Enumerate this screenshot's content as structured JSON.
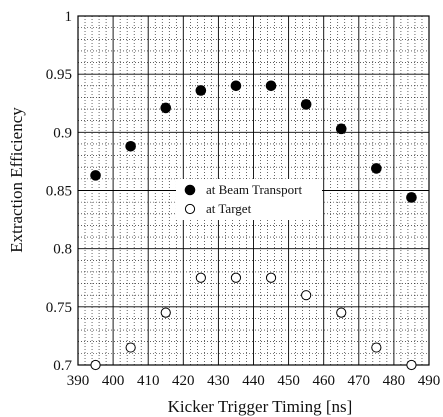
{
  "colors": {
    "background": "#ffffff",
    "axis": "#000000",
    "major_grid": "#000000",
    "minor_grid": "#000000",
    "beam_transport_marker": "#000000",
    "target_marker_stroke": "#000000",
    "target_marker_fill": "#ffffff"
  },
  "chart_data": {
    "type": "scatter",
    "title": "",
    "xlabel": "Kicker Trigger Timing [ns]",
    "ylabel": "Extraction Efficiency",
    "xlim": [
      390,
      490
    ],
    "ylim": [
      0.7,
      1.0
    ],
    "x_ticks": [
      390,
      400,
      410,
      420,
      430,
      440,
      450,
      460,
      470,
      480,
      490
    ],
    "x_tick_labels": [
      "390",
      "400",
      "410",
      "420",
      "430",
      "440",
      "450",
      "460",
      "470",
      "480",
      "490"
    ],
    "y_ticks": [
      0.7,
      0.75,
      0.8,
      0.85,
      0.9,
      0.95,
      1.0
    ],
    "y_tick_labels": [
      "0.7",
      "0.75",
      "0.8",
      "0.85",
      "0.9",
      "0.95",
      "1"
    ],
    "grid": true,
    "minor_grid": true,
    "legend_position": "center-right",
    "series": [
      {
        "name": "at Beam Transport",
        "marker": "filled-circle",
        "x": [
          395,
          405,
          415,
          425,
          435,
          445,
          455,
          465,
          475,
          485
        ],
        "y": [
          0.863,
          0.888,
          0.921,
          0.936,
          0.94,
          0.94,
          0.924,
          0.903,
          0.869,
          0.844
        ]
      },
      {
        "name": "at Target",
        "marker": "open-circle",
        "x": [
          395,
          405,
          415,
          425,
          435,
          445,
          455,
          465,
          475,
          485
        ],
        "y": [
          0.7,
          0.715,
          0.745,
          0.775,
          0.775,
          0.775,
          0.76,
          0.745,
          0.715,
          0.7
        ]
      }
    ]
  }
}
